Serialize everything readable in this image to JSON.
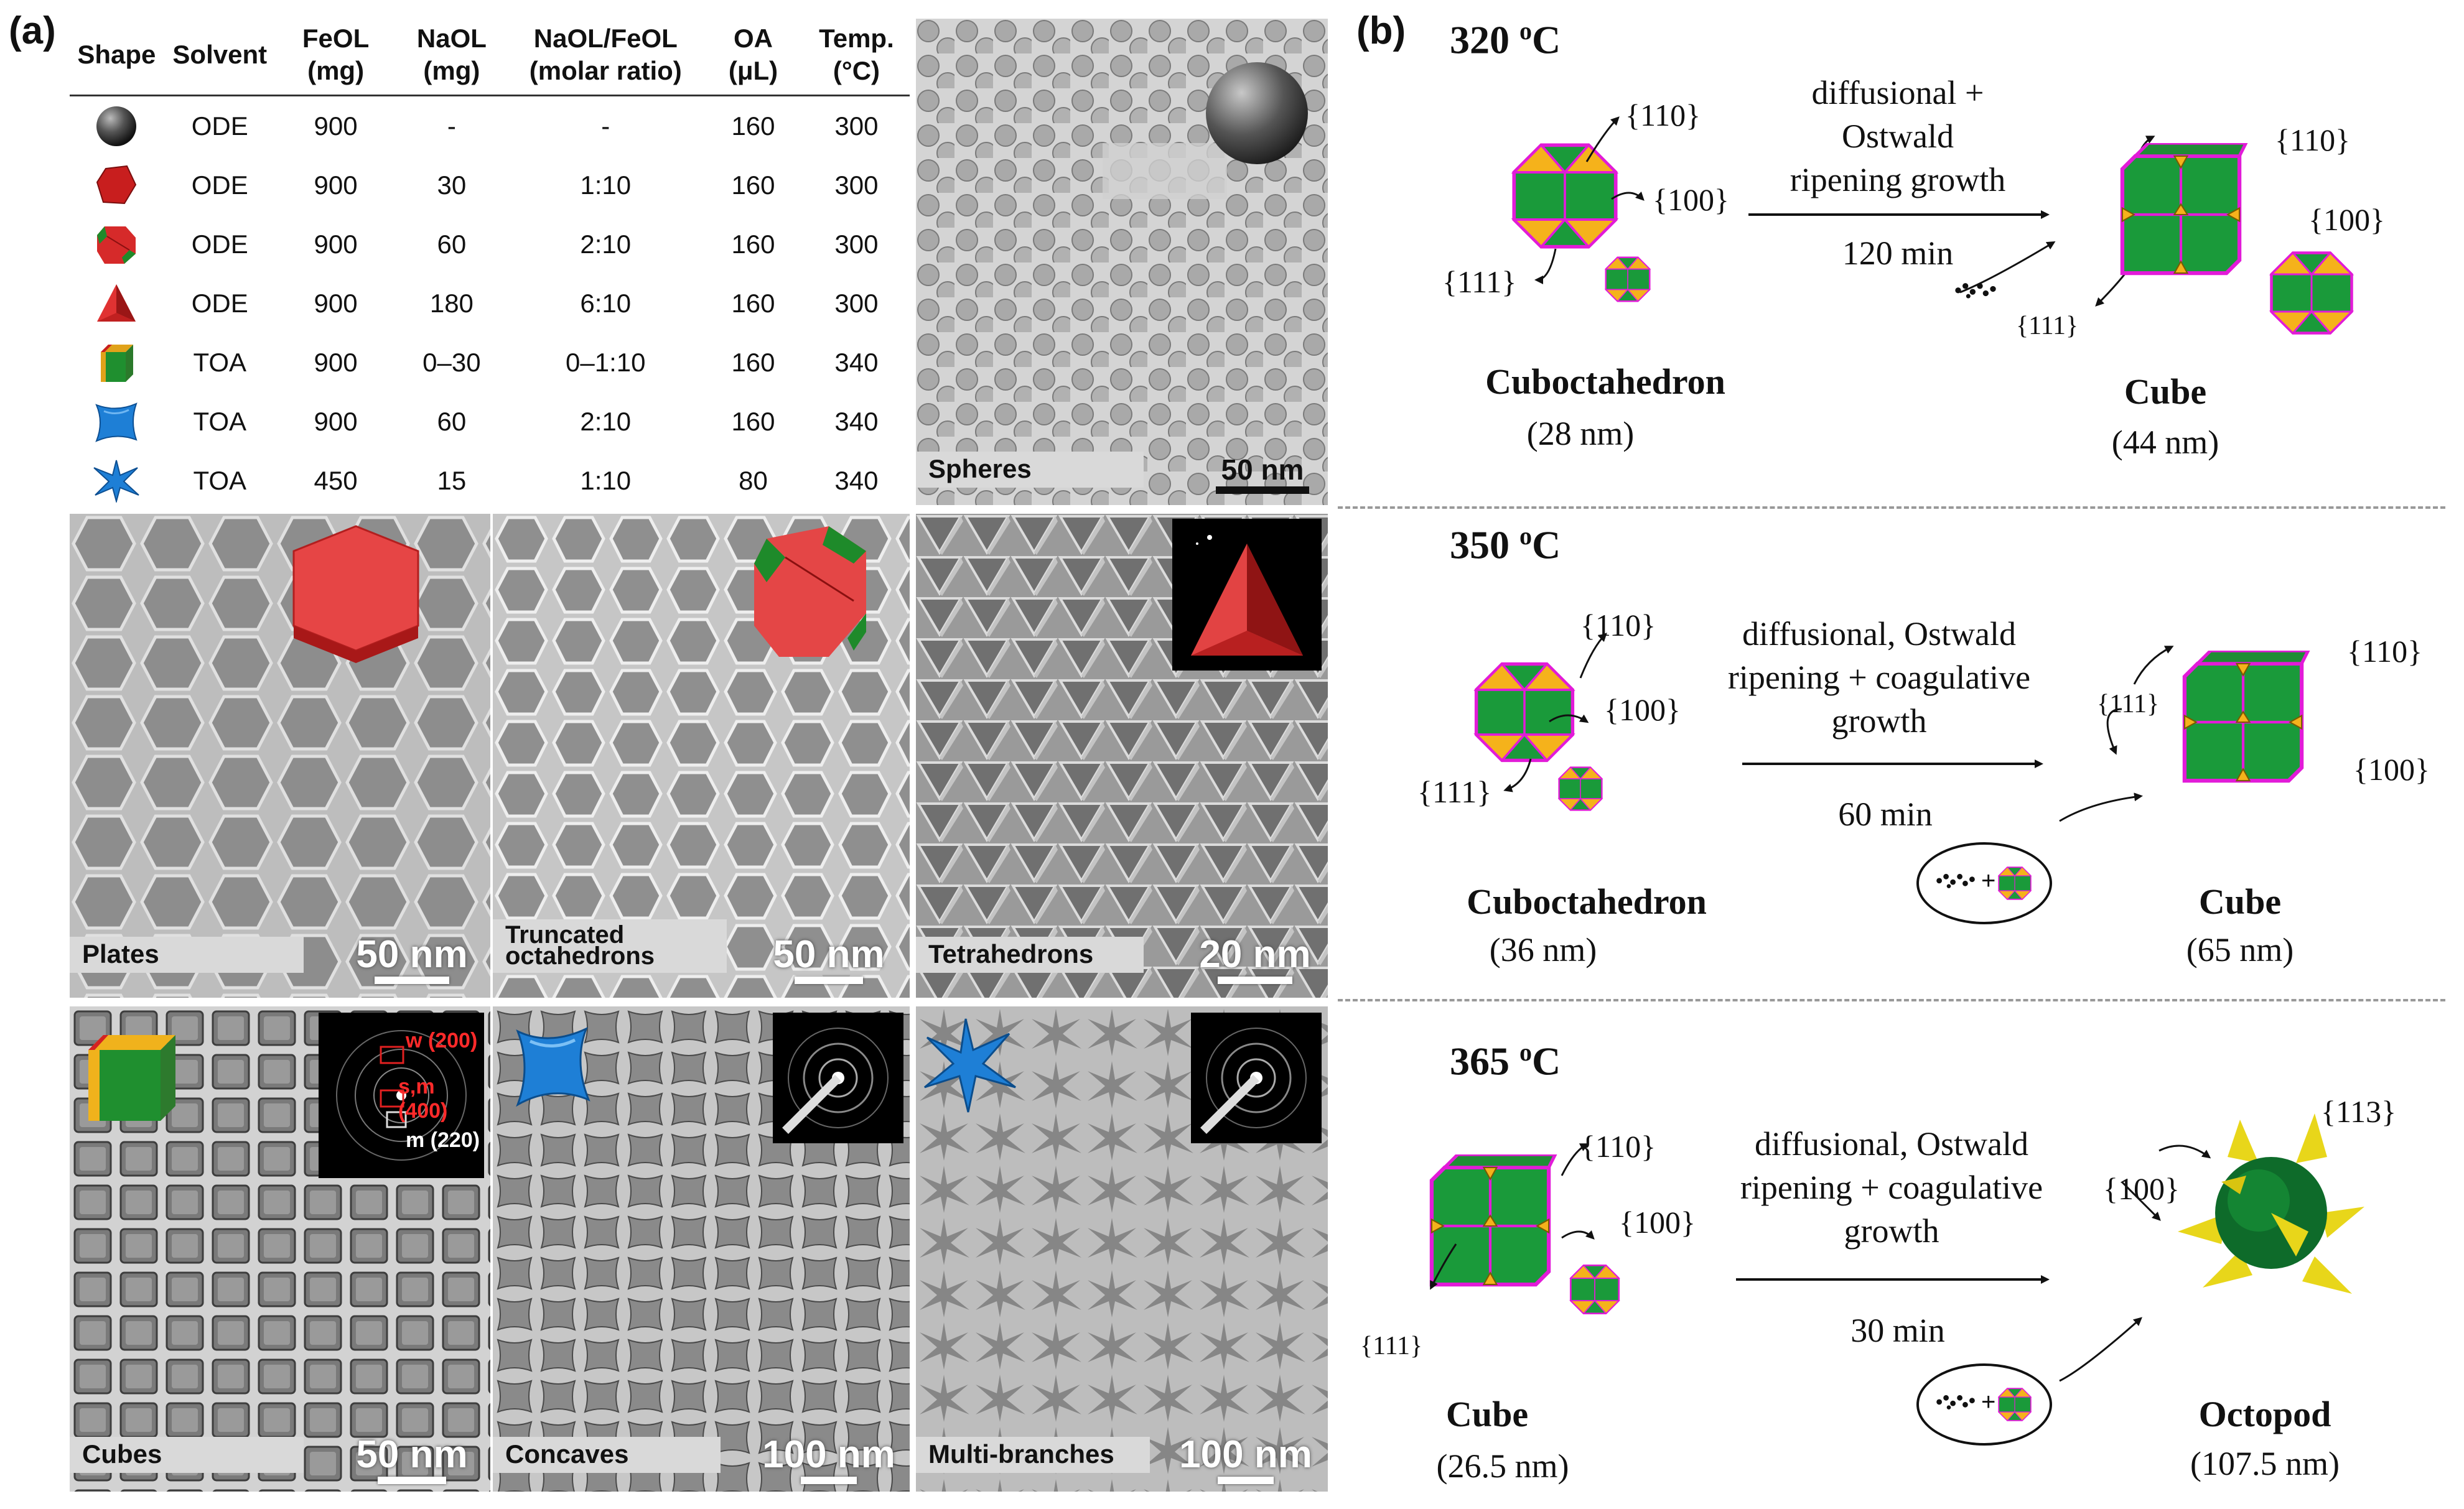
{
  "panel_a": {
    "letter": "(a)",
    "table": {
      "headers": [
        {
          "l1": "Shape",
          "l2": ""
        },
        {
          "l1": "Solvent",
          "l2": ""
        },
        {
          "l1": "FeOL",
          "l2": "(mg)"
        },
        {
          "l1": "NaOL",
          "l2": "(mg)"
        },
        {
          "l1": "NaOL/FeOL",
          "l2": "(molar ratio)"
        },
        {
          "l1": "OA",
          "l2": "(μL)"
        },
        {
          "l1": "Temp.",
          "l2": "(°C)"
        }
      ],
      "rows": [
        {
          "shape": "sphere",
          "solvent": "ODE",
          "feol": "900",
          "naol": "-",
          "ratio": "-",
          "oa": "160",
          "temp": "300"
        },
        {
          "shape": "plate",
          "solvent": "ODE",
          "feol": "900",
          "naol": "30",
          "ratio": "1:10",
          "oa": "160",
          "temp": "300"
        },
        {
          "shape": "truncated-octahedron",
          "solvent": "ODE",
          "feol": "900",
          "naol": "60",
          "ratio": "2:10",
          "oa": "160",
          "temp": "300"
        },
        {
          "shape": "tetrahedron",
          "solvent": "ODE",
          "feol": "900",
          "naol": "180",
          "ratio": "6:10",
          "oa": "160",
          "temp": "300"
        },
        {
          "shape": "cube",
          "solvent": "TOA",
          "feol": "900",
          "naol": "0–30",
          "ratio": "0–1:10",
          "oa": "160",
          "temp": "340"
        },
        {
          "shape": "concave",
          "solvent": "TOA",
          "feol": "900",
          "naol": "60",
          "ratio": "2:10",
          "oa": "160",
          "temp": "340"
        },
        {
          "shape": "multi-branch",
          "solvent": "TOA",
          "feol": "450",
          "naol": "15",
          "ratio": "1:10",
          "oa": "80",
          "temp": "340"
        }
      ]
    },
    "images": {
      "spheres": {
        "label": "Spheres",
        "scale": "50 nm"
      },
      "plates": {
        "label": "Plates",
        "scale": "50 nm"
      },
      "truncated": {
        "label1": "Truncated",
        "label2": "octahedrons",
        "scale": "50 nm"
      },
      "tetrahedrons": {
        "label": "Tetrahedrons",
        "scale": "20 nm"
      },
      "cubes": {
        "label": "Cubes",
        "scale": "50 nm",
        "saed": {
          "w": "w (200)",
          "sm": "s,m (400)",
          "m": "m (220)"
        }
      },
      "concaves": {
        "label": "Concaves",
        "scale": "100 nm"
      },
      "multibranches": {
        "label": "Multi-branches",
        "scale": "100 nm"
      }
    }
  },
  "panel_b": {
    "letter": "(b)",
    "sections": [
      {
        "temp": "320",
        "temp_unit": "C",
        "temp_sup": "o",
        "condition": [
          "diffusional +",
          "Ostwald",
          "ripening growth"
        ],
        "time": "120 min",
        "start": {
          "name": "Cuboctahedron",
          "size": "(28 nm)",
          "facets": {
            "f110": "{110}",
            "f100": "{100}",
            "f111": "{111}"
          }
        },
        "end": {
          "name": "Cube",
          "size": "(44  nm)",
          "facets": {
            "f110": "{110}",
            "f100": "{100}",
            "f111": "{111}"
          }
        }
      },
      {
        "temp": "350",
        "temp_unit": "C",
        "temp_sup": "o",
        "condition": [
          "diffusional, Ostwald",
          "ripening + coagulative",
          "growth"
        ],
        "time": "60 min",
        "start": {
          "name": "Cuboctahedron",
          "size": "(36 nm)",
          "facets": {
            "f110": "{110}",
            "f100": "{100}",
            "f111": "{111}"
          }
        },
        "end": {
          "name": "Cube",
          "size": "(65 nm)",
          "facets": {
            "f110": "{110}",
            "f100": "{100}",
            "f111": "{111}"
          }
        }
      },
      {
        "temp": "365",
        "temp_unit": "C",
        "temp_sup": "o",
        "condition": [
          "diffusional, Ostwald",
          "ripening + coagulative",
          "growth"
        ],
        "time": "30 min",
        "start": {
          "name": "Cube",
          "size": "(26.5  nm)",
          "facets": {
            "f110": "{110}",
            "f100": "{100}",
            "f111": "{111}"
          }
        },
        "end": {
          "name": "Octopod",
          "size": "(107.5 nm)",
          "facets": {
            "f113": "{113}",
            "f100": "{100}"
          }
        }
      }
    ],
    "plus": "+"
  },
  "colors": {
    "green": "#1a9a3a",
    "yellow": "#f5b21b",
    "magenta": "#e21bd8",
    "red": "#e23b3b",
    "blue": "#1e7fd6",
    "octopod_yellow": "#e8d61a",
    "octopod_green": "#0e6b2a"
  }
}
